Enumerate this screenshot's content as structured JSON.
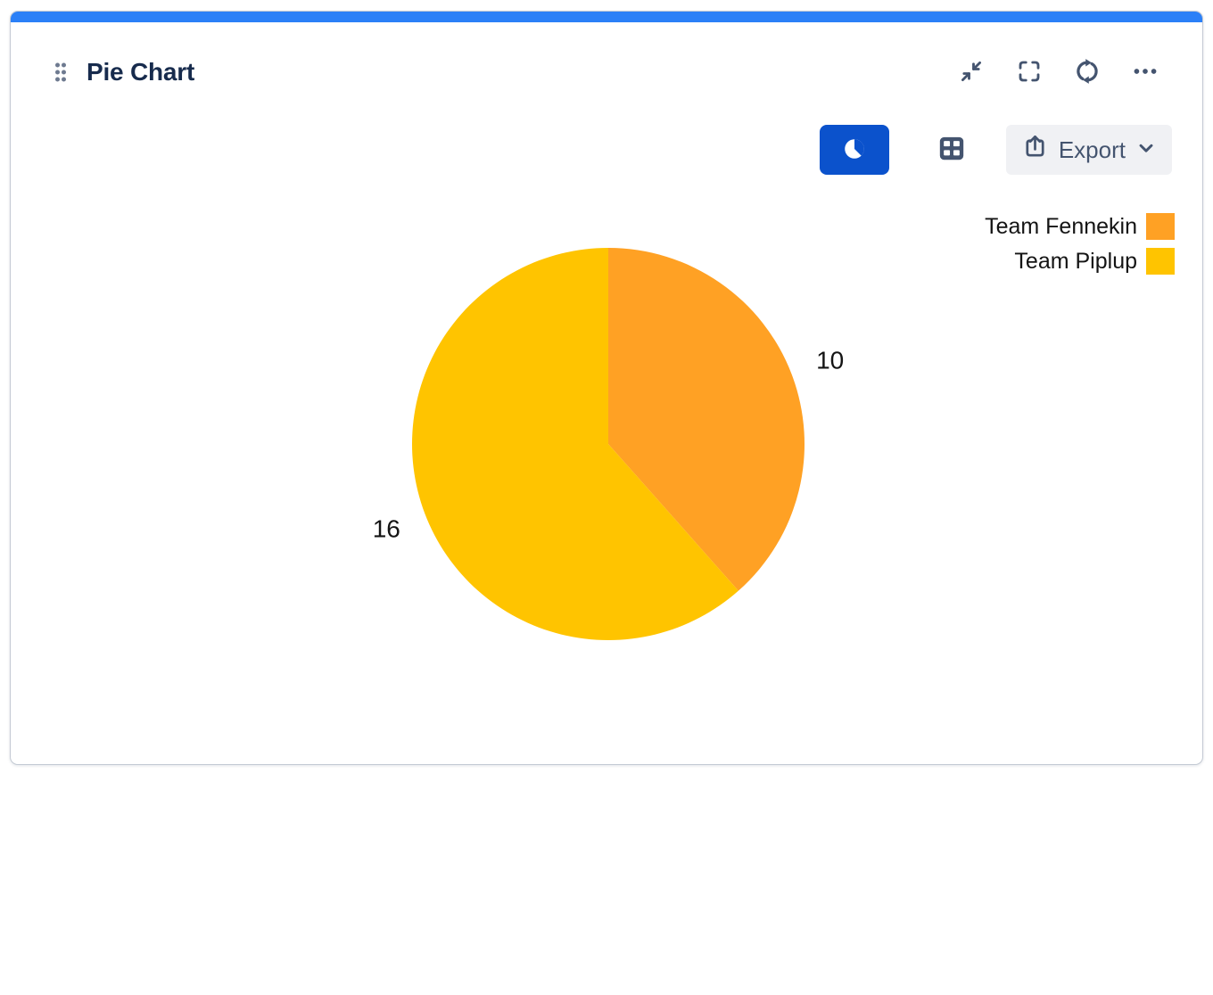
{
  "colors": {
    "accent_bar": "#2B80F7",
    "primary_button": "#0B52CC",
    "icon_slate": "#44546F",
    "title_navy": "#172B4D",
    "export_bg": "#F0F1F4",
    "card_border": "#C4CAD4",
    "label_text": "#141414",
    "drag_dots": "#6E7A90"
  },
  "gadget": {
    "title": "Pie Chart",
    "header_actions": [
      {
        "icon": "minimize-icon"
      },
      {
        "icon": "fullscreen-icon"
      },
      {
        "icon": "refresh-icon"
      },
      {
        "icon": "more-icon"
      }
    ]
  },
  "toolbar": {
    "chart_view": {
      "icon": "pie-chart-icon",
      "selected": true
    },
    "table_view": {
      "icon": "table-grid-icon",
      "selected": false
    },
    "export_label": "Export",
    "export_icons": [
      "share-upload-icon",
      "chevron-down-icon"
    ]
  },
  "chart_data": {
    "type": "pie",
    "title": "Pie Chart",
    "series": [
      {
        "name": "Team Fennekin",
        "value": 10,
        "color": "#FFA124"
      },
      {
        "name": "Team Piplup",
        "value": 16,
        "color": "#FFC400"
      }
    ],
    "total": 26,
    "start_angle_deg": 0,
    "direction": "clockwise",
    "data_labels": [
      "10",
      "16"
    ],
    "legend_position": "top-right",
    "grid": false
  }
}
